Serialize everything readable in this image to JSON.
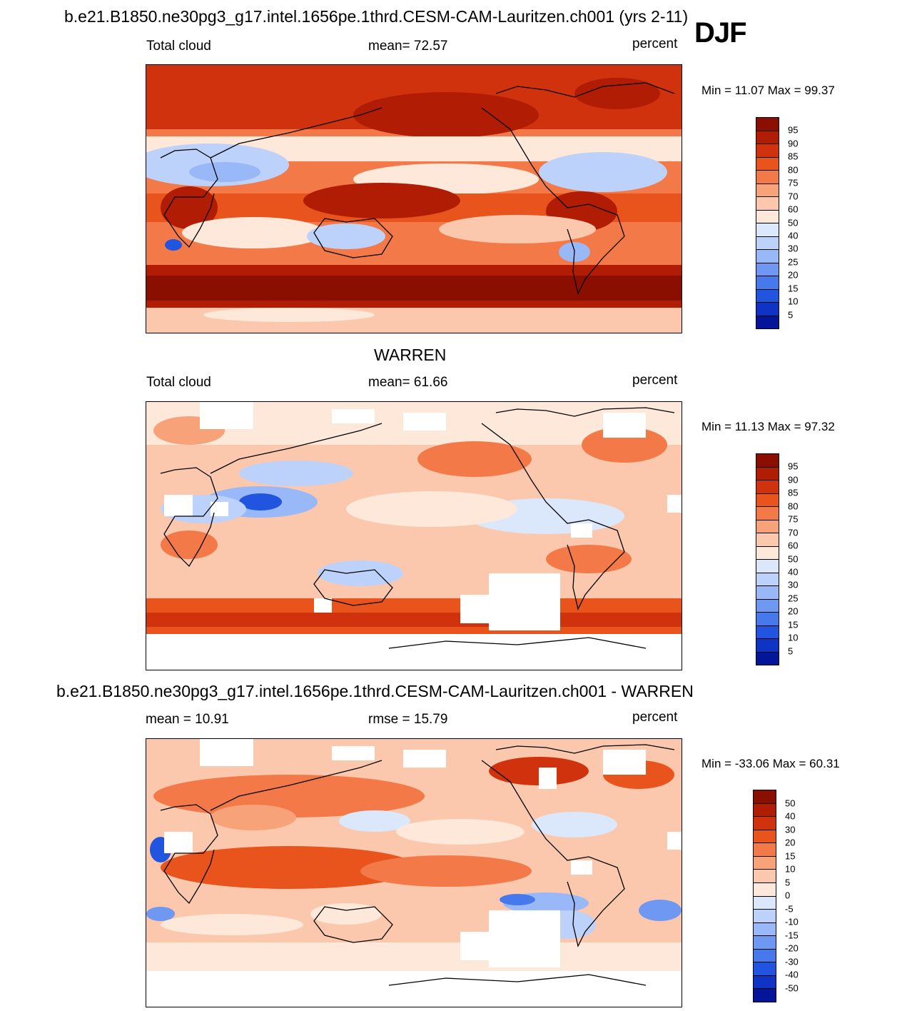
{
  "figure": {
    "main_title": "b.e21.B1850.ne30pg3_g17.intel.1656pe.1thrd.CESM-CAM-Lauritzen.ch001 (yrs 2-11)",
    "season": "DJF"
  },
  "panel1": {
    "left": "Total cloud",
    "center": "mean=  72.57",
    "right": "percent",
    "minmax": "Min =  11.07 Max =  99.37",
    "labels": [
      "95",
      "90",
      "85",
      "80",
      "75",
      "70",
      "60",
      "50",
      "40",
      "30",
      "25",
      "20",
      "15",
      "10",
      "5"
    ]
  },
  "panel2": {
    "title": "WARREN",
    "left": "Total cloud",
    "center": "mean=  61.66",
    "right": "percent",
    "minmax": "Min =  11.13 Max =  97.32",
    "labels": [
      "95",
      "90",
      "85",
      "80",
      "75",
      "70",
      "60",
      "50",
      "40",
      "30",
      "25",
      "20",
      "15",
      "10",
      "5"
    ]
  },
  "panel3": {
    "title": "b.e21.B1850.ne30pg3_g17.intel.1656pe.1thrd.CESM-CAM-Lauritzen.ch001 - WARREN",
    "left": "mean =  10.91",
    "center": "rmse =  15.79",
    "right": "percent",
    "minmax": "Min = -33.06 Max =  60.31",
    "labels": [
      "50",
      "40",
      "30",
      "20",
      "15",
      "10",
      "5",
      "0",
      "-5",
      "-10",
      "-15",
      "-20",
      "-30",
      "-40",
      "-50"
    ]
  },
  "colors": {
    "scale": [
      "#8b0f00",
      "#b11c05",
      "#d1320e",
      "#e9531c",
      "#f37a48",
      "#f8a27a",
      "#fcc8ad",
      "#fde8da",
      "#dbe7fb",
      "#bcd2fa",
      "#98b8f8",
      "#6e98f1",
      "#4778ec",
      "#2155e0",
      "#0f33c4",
      "#04159a"
    ]
  }
}
